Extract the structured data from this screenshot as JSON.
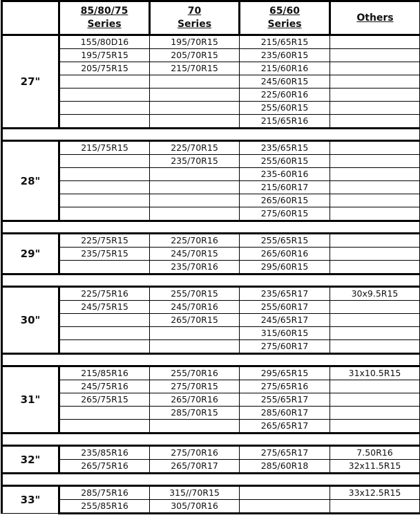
{
  "table": {
    "header": [
      null,
      [
        "85/80/75",
        "Series"
      ],
      [
        "70",
        "Series"
      ],
      [
        "65/60",
        "Series"
      ],
      [
        "Others"
      ]
    ],
    "groups": [
      {
        "size": "27\"",
        "rows": [
          [
            "155/80D16",
            "195/70R15",
            "215/65R15",
            null
          ],
          [
            "195/75R15",
            "205/70R15",
            "235/60R15",
            null
          ],
          [
            "205/75R15",
            "215/70R15",
            "215/60R16",
            null
          ],
          [
            null,
            null,
            "245/60R15",
            null
          ],
          [
            null,
            null,
            "225/60R16",
            null
          ],
          [
            null,
            null,
            "255/60R15",
            null
          ],
          [
            null,
            null,
            "215/65R16",
            null
          ]
        ]
      },
      {
        "size": "28\"",
        "rows": [
          [
            "215/75R15",
            "225/70R15",
            "235/65R15",
            null
          ],
          [
            null,
            "235/70R15",
            "255/60R15",
            null
          ],
          [
            null,
            null,
            "235-60R16",
            null
          ],
          [
            null,
            null,
            "215/60R17",
            null
          ],
          [
            null,
            null,
            "265/60R15",
            null
          ],
          [
            null,
            null,
            "275/60R15",
            null
          ]
        ]
      },
      {
        "size": "29\"",
        "rows": [
          [
            "225/75R15",
            "225/70R16",
            "255/65R15",
            null
          ],
          [
            "235/75R15",
            "245/70R15",
            "265/60R16",
            null
          ],
          [
            null,
            "235/70R16",
            "295/60R15",
            null
          ]
        ]
      },
      {
        "size": "30\"",
        "rows": [
          [
            "225/75R16",
            "255/70R15",
            "235/65R17",
            "30x9.5R15"
          ],
          [
            "245/75R15",
            "245/70R16",
            "255/60R17",
            null
          ],
          [
            null,
            "265/70R15",
            "245/65R17",
            null
          ],
          [
            null,
            null,
            "315/60R15",
            null
          ],
          [
            null,
            null,
            "275/60R17",
            null
          ]
        ]
      },
      {
        "size": "31\"",
        "rows": [
          [
            "215/85R16",
            "255/70R16",
            "295/65R15",
            "31x10.5R15"
          ],
          [
            "245/75R16",
            "275/70R15",
            "275/65R16",
            null
          ],
          [
            "265/75R15",
            "265/70R16",
            "255/65R17",
            null
          ],
          [
            null,
            "285/70R15",
            "285/60R17",
            null
          ],
          [
            null,
            null,
            "265/65R17",
            null
          ]
        ]
      },
      {
        "size": "32\"",
        "rows": [
          [
            "235/85R16",
            "275/70R16",
            "275/65R17",
            "7.50R16"
          ],
          [
            "265/75R16",
            "265/70R17",
            "285/60R18",
            "32x11.5R15"
          ]
        ]
      },
      {
        "size": "33\"",
        "rows": [
          [
            "285/75R16",
            "315//70R15",
            null,
            "33x12.5R15"
          ],
          [
            "255/85R16",
            "305/70R16",
            null,
            null
          ]
        ]
      }
    ]
  }
}
